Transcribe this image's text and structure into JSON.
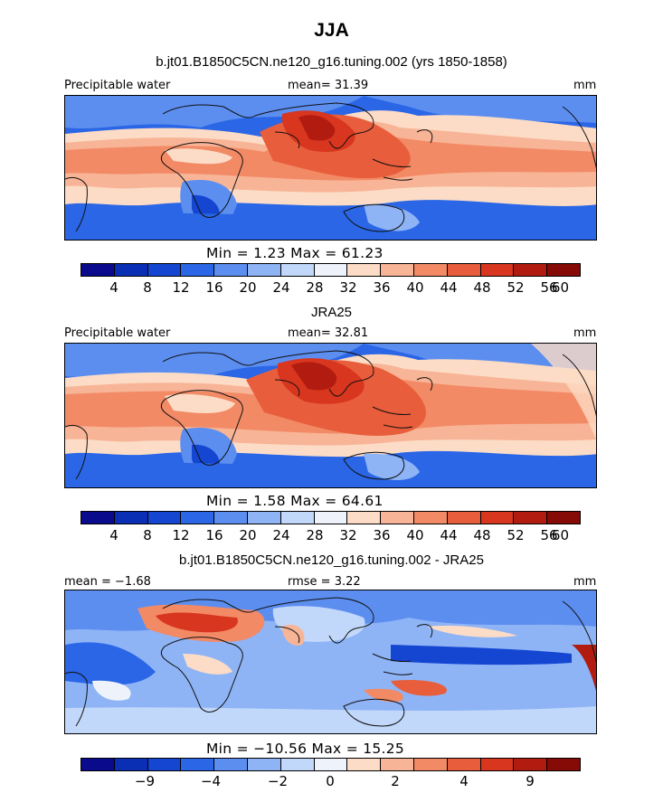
{
  "header": {
    "season": "JJA",
    "model_title": "b.jt01.B1850C5CN.ne120_g16.tuning.002 (yrs 1850-1858)"
  },
  "panel1": {
    "variable": "Precipitable water",
    "mean_label": "mean=  31.39",
    "unit": "mm",
    "stats": "Min =    1.23 Max =   61.23",
    "ticks": [
      "4",
      "8",
      "12",
      "16",
      "20",
      "24",
      "28",
      "32",
      "36",
      "40",
      "44",
      "48",
      "52",
      "56",
      "60"
    ]
  },
  "panel2": {
    "title": "JRA25",
    "variable": "Precipitable water",
    "mean_label": "mean=  32.81",
    "unit": "mm",
    "stats": "Min =    1.58 Max =   64.61",
    "ticks": [
      "4",
      "8",
      "12",
      "16",
      "20",
      "24",
      "28",
      "32",
      "36",
      "40",
      "44",
      "48",
      "52",
      "56",
      "60"
    ]
  },
  "panel3": {
    "title": "b.jt01.B1850C5CN.ne120_g16.tuning.002 - JRA25",
    "mean_label": "mean =  −1.68",
    "rmse_label": "rmse =   3.22",
    "unit": "mm",
    "stats": "Min = −10.56 Max =   15.25",
    "ticks": [
      "−9",
      "−4",
      "−2",
      "0",
      "2",
      "4",
      "9"
    ]
  },
  "colors": {
    "abs_scale": [
      "#0a0a8c",
      "#0a2eb4",
      "#1446d2",
      "#2a66e6",
      "#5c8ef0",
      "#8eb4f6",
      "#c2d8fa",
      "#eef2fb",
      "#fcdcc6",
      "#f8b496",
      "#f28a66",
      "#e85e3c",
      "#d8361e",
      "#b21c10",
      "#860a06"
    ],
    "diff_scale": [
      "#0a0a8c",
      "#0a2eb4",
      "#1446d2",
      "#2a66e6",
      "#5c8ef0",
      "#8eb4f6",
      "#c2d8fa",
      "#eef2fb",
      "#fcdcc6",
      "#f8b496",
      "#f28a66",
      "#e85e3c",
      "#d8361e",
      "#b21c10",
      "#860a06"
    ]
  }
}
